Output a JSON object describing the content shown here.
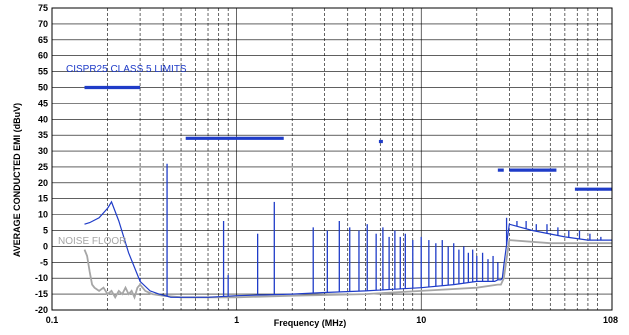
{
  "chart_data": {
    "type": "line",
    "title": "",
    "xlabel": "Frequency (MHz)",
    "ylabel": "AVERAGE CONDUCTED EMI (dBuV)",
    "xscale": "log",
    "xlim": [
      0.1,
      108
    ],
    "ylim": [
      -20,
      75
    ],
    "x_tick_labels": [
      "0.1",
      "1",
      "10",
      "108"
    ],
    "y_ticks": [
      -20,
      -15,
      -10,
      -5,
      0,
      5,
      10,
      15,
      20,
      25,
      30,
      35,
      40,
      45,
      50,
      55,
      60,
      65,
      70,
      75
    ],
    "grid": true,
    "annotations": [
      "CISPR25 CLASS 5 LIMITS",
      "NOISE FLOOR"
    ],
    "colors": {
      "limits": "#1f3cc8",
      "emi": "#1f3cc8",
      "noise_floor": "#a6a6a6"
    },
    "limit_segments": [
      {
        "x": [
          0.15,
          0.3
        ],
        "y": 50
      },
      {
        "x": [
          0.53,
          1.8
        ],
        "y": 34
      },
      {
        "x": [
          5.9,
          6.2
        ],
        "y": 33
      },
      {
        "x": [
          26,
          28
        ],
        "y": 24
      },
      {
        "x": [
          30,
          54
        ],
        "y": 24
      },
      {
        "x": [
          68,
          108
        ],
        "y": 18
      }
    ],
    "emi_curve": {
      "x": [
        0.15,
        0.16,
        0.18,
        0.2,
        0.21,
        0.23,
        0.26,
        0.3,
        0.34,
        0.38,
        0.41,
        0.44,
        0.5,
        0.7,
        1.0,
        2.0,
        3.0,
        5.0,
        7.0,
        10.0,
        15.0,
        20.0,
        25.0,
        26.0,
        27.0,
        27.5,
        28.0,
        30.0,
        40.0,
        60.0,
        80.0,
        108.0
      ],
      "y": [
        7,
        7.5,
        9,
        12,
        14,
        8,
        -2,
        -11,
        -14,
        -15,
        -15.5,
        -16,
        -16,
        -16,
        -15.5,
        -15,
        -14.5,
        -14,
        -13.5,
        -13,
        -12,
        -11,
        -11,
        -10.5,
        -10.5,
        -10,
        -6,
        7,
        5,
        3,
        2,
        2
      ]
    },
    "emi_spikes": [
      {
        "x": 0.3,
        "y": -10
      },
      {
        "x": 0.42,
        "y": 26
      },
      {
        "x": 0.85,
        "y": 8
      },
      {
        "x": 0.9,
        "y": -9
      },
      {
        "x": 1.3,
        "y": 4
      },
      {
        "x": 1.6,
        "y": 14
      },
      {
        "x": 2.6,
        "y": 6
      },
      {
        "x": 3.1,
        "y": 5
      },
      {
        "x": 3.6,
        "y": 8
      },
      {
        "x": 4.1,
        "y": 6
      },
      {
        "x": 4.6,
        "y": 5
      },
      {
        "x": 5.1,
        "y": 7
      },
      {
        "x": 5.7,
        "y": 4
      },
      {
        "x": 6.2,
        "y": 6
      },
      {
        "x": 6.7,
        "y": 3
      },
      {
        "x": 7.2,
        "y": 5
      },
      {
        "x": 7.7,
        "y": 3
      },
      {
        "x": 8.2,
        "y": 4
      },
      {
        "x": 9.0,
        "y": 2
      },
      {
        "x": 10.0,
        "y": 3
      },
      {
        "x": 11.0,
        "y": 2
      },
      {
        "x": 12.0,
        "y": 1
      },
      {
        "x": 13.0,
        "y": 2
      },
      {
        "x": 14.0,
        "y": 0
      },
      {
        "x": 15.0,
        "y": 1
      },
      {
        "x": 16.0,
        "y": -1
      },
      {
        "x": 17.0,
        "y": 0
      },
      {
        "x": 18.0,
        "y": -2
      },
      {
        "x": 19.0,
        "y": -1
      },
      {
        "x": 20.0,
        "y": -3
      },
      {
        "x": 21.5,
        "y": -2
      },
      {
        "x": 23.0,
        "y": -4
      },
      {
        "x": 24.5,
        "y": -3
      },
      {
        "x": 26.0,
        "y": -5
      },
      {
        "x": 29.0,
        "y": 9
      },
      {
        "x": 33.0,
        "y": 8
      },
      {
        "x": 37.0,
        "y": 8
      },
      {
        "x": 42.0,
        "y": 7
      },
      {
        "x": 48.0,
        "y": 7
      },
      {
        "x": 55.0,
        "y": 6
      },
      {
        "x": 63.0,
        "y": 5
      },
      {
        "x": 72.0,
        "y": 5
      },
      {
        "x": 82.0,
        "y": 4
      },
      {
        "x": 94.0,
        "y": 3
      }
    ],
    "noise_floor_curve": {
      "x": [
        0.15,
        0.155,
        0.16,
        0.165,
        0.17,
        0.18,
        0.19,
        0.2,
        0.21,
        0.22,
        0.23,
        0.24,
        0.25,
        0.26,
        0.27,
        0.28,
        0.29,
        0.3,
        0.32,
        0.35,
        0.4,
        0.5,
        0.7,
        1.0,
        2.0,
        5.0,
        10.0,
        20.0,
        26.0,
        27.0,
        28.0,
        30.0,
        50.0,
        80.0,
        108.0
      ],
      "y": [
        -1,
        -3,
        -8,
        -12,
        -13,
        -14,
        -13,
        -15,
        -14,
        -16,
        -14,
        -15,
        -13,
        -15,
        -14,
        -16,
        -13,
        -12,
        -14,
        -15,
        -15.5,
        -16,
        -16,
        -16,
        -15.5,
        -15,
        -14,
        -13,
        -12,
        -12,
        -10,
        2,
        1,
        1,
        1
      ]
    }
  }
}
